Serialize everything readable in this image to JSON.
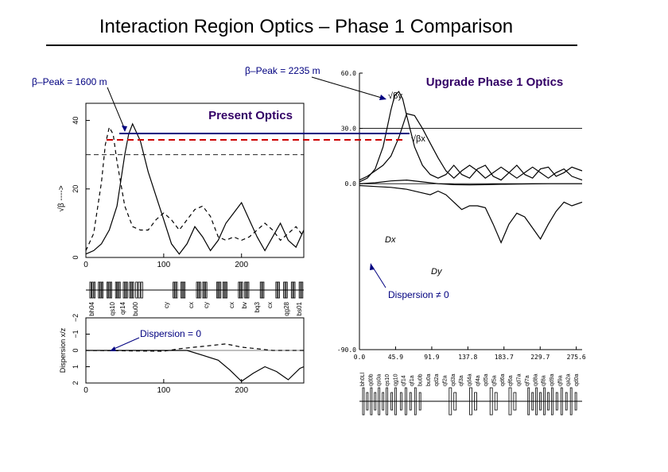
{
  "slide": {
    "title": "Interaction Region Optics – Phase 1 Comparison"
  },
  "annotations": {
    "beta_peak_present": "β–Peak = 1600 m",
    "beta_peak_upgrade": "β–Peak = 2235 m",
    "dispersion_zero": "Dispersion = 0",
    "dispersion_nonzero": "Dispersion ≠ 0"
  },
  "colors": {
    "label_purple": "#330066",
    "annot_blue": "#000080",
    "peak_line_blue": "#000080",
    "peak_line_red": "#cc0000"
  },
  "chart_data": [
    {
      "id": "present_beta",
      "type": "line",
      "title": "Present Optics",
      "ylabel": "√β ---->",
      "xlim": [
        0,
        280
      ],
      "ylim": [
        0,
        45
      ],
      "xticks": [
        0,
        100,
        200
      ],
      "xtick_labels": [
        "0",
        "100",
        "200"
      ],
      "yticks": [
        0,
        20,
        40
      ],
      "ytick_labels": [
        "0",
        "20",
        "40"
      ],
      "reference_level": 30,
      "series": [
        {
          "name": "sqrt-beta-x",
          "style": "solid",
          "x": [
            0,
            10,
            20,
            30,
            40,
            50,
            55,
            60,
            70,
            80,
            90,
            100,
            110,
            120,
            130,
            140,
            150,
            160,
            170,
            180,
            190,
            200,
            210,
            220,
            230,
            240,
            250,
            260,
            270,
            280
          ],
          "y": [
            1,
            2,
            4,
            8,
            15,
            30,
            36,
            39,
            34,
            25,
            18,
            11,
            4,
            1,
            4,
            9,
            6,
            2,
            5,
            10,
            13,
            16,
            11,
            6,
            2,
            6,
            10,
            5,
            3,
            8
          ]
        },
        {
          "name": "sqrt-beta-y",
          "style": "dashed",
          "x": [
            0,
            10,
            20,
            25,
            30,
            35,
            40,
            50,
            60,
            70,
            80,
            90,
            100,
            110,
            120,
            130,
            140,
            150,
            160,
            170,
            180,
            190,
            200,
            210,
            220,
            230,
            240,
            250,
            260,
            270,
            280
          ],
          "y": [
            2,
            7,
            22,
            33,
            38,
            36,
            28,
            15,
            9,
            8,
            8,
            11,
            13,
            11,
            8,
            11,
            14,
            15,
            12,
            6,
            5,
            6,
            5,
            6,
            8,
            10,
            8,
            5,
            7,
            9,
            6
          ]
        }
      ]
    },
    {
      "id": "present_lattice",
      "type": "lattice",
      "element_labels": [
        "bh04",
        "qs10",
        "qr14",
        "bu00",
        "cy",
        "cx",
        "cy",
        "cx",
        "bv",
        "bq3",
        "cx",
        "qg28",
        "bs01"
      ]
    },
    {
      "id": "present_dispersion",
      "type": "line",
      "ylabel": "Dispersion x/z",
      "xlim": [
        0,
        280
      ],
      "ylim": [
        2,
        -2
      ],
      "xticks": [
        0,
        100,
        200
      ],
      "xtick_labels": [
        "0",
        "100",
        "200"
      ],
      "yticks": [
        2,
        1,
        0,
        -1,
        -2
      ],
      "ytick_labels": [
        "2",
        "1",
        "0",
        "−1",
        "−2"
      ],
      "series": [
        {
          "name": "dispersion-x",
          "style": "solid",
          "x": [
            0,
            100,
            130,
            150,
            170,
            185,
            200,
            215,
            230,
            245,
            260,
            275,
            280
          ],
          "y": [
            0,
            0,
            0,
            0.3,
            0.6,
            1.2,
            1.9,
            1.4,
            1.0,
            1.3,
            1.8,
            1.1,
            1.0
          ]
        },
        {
          "name": "dispersion-y",
          "style": "dashed",
          "x": [
            0,
            100,
            120,
            140,
            160,
            180,
            200,
            220,
            240,
            260,
            280
          ],
          "y": [
            0,
            0.05,
            -0.1,
            -0.2,
            -0.3,
            -0.4,
            -0.2,
            -0.1,
            0,
            0,
            0
          ]
        }
      ]
    },
    {
      "id": "upgrade_beta",
      "type": "line",
      "title": "Upgrade Phase 1 Optics",
      "xlim": [
        0,
        283
      ],
      "ylim": [
        -90,
        60
      ],
      "xticks": [
        0,
        45.9,
        91.9,
        137.8,
        183.7,
        229.7,
        275.6
      ],
      "xtick_labels": [
        "0.0",
        "45.9",
        "91.9",
        "137.8",
        "183.7",
        "229.7",
        "275.6"
      ],
      "yticks": [
        60,
        30,
        0,
        -90
      ],
      "ytick_labels": [
        "60.0",
        "30.0",
        "0.0",
        "-90.0"
      ],
      "curve_labels": {
        "sqrt_beta_y": "√βy",
        "sqrt_beta_x": "√βx",
        "dispersion_x": "Dx",
        "dispersion_y": "Dy"
      },
      "series": [
        {
          "name": "sqrt-beta-y",
          "style": "solid",
          "x": [
            0,
            10,
            20,
            30,
            40,
            45,
            50,
            55,
            60,
            70,
            80,
            90,
            100,
            110,
            120,
            130,
            140,
            150,
            160,
            170,
            180,
            190,
            200,
            210,
            220,
            230,
            240,
            250,
            260,
            270,
            283
          ],
          "y": [
            1,
            3,
            8,
            20,
            40,
            48,
            50,
            46,
            37,
            20,
            10,
            5,
            3,
            5,
            10,
            5,
            3,
            8,
            10,
            4,
            2,
            6,
            10,
            5,
            3,
            8,
            9,
            4,
            6,
            9,
            7
          ]
        },
        {
          "name": "sqrt-beta-x",
          "style": "solid",
          "x": [
            0,
            10,
            20,
            30,
            40,
            50,
            60,
            70,
            80,
            90,
            100,
            110,
            120,
            130,
            140,
            150,
            160,
            170,
            180,
            190,
            200,
            210,
            220,
            230,
            240,
            250,
            260,
            270,
            283
          ],
          "y": [
            2,
            4,
            7,
            10,
            15,
            25,
            38,
            37,
            30,
            22,
            14,
            7,
            3,
            7,
            10,
            7,
            3,
            6,
            9,
            6,
            3,
            6,
            9,
            6,
            3,
            6,
            8,
            4,
            2
          ]
        },
        {
          "name": "dispersion-x",
          "style": "solid",
          "x": [
            0,
            20,
            40,
            60,
            80,
            100,
            120,
            140,
            160,
            180,
            200,
            220,
            240,
            260,
            283
          ],
          "y": [
            0,
            0.5,
            1.5,
            2,
            1,
            0,
            -0.5,
            -0.6,
            -0.5,
            -0.3,
            -0.2,
            -0.1,
            0,
            0,
            0
          ]
        },
        {
          "name": "dispersion-y",
          "style": "solid",
          "x": [
            0,
            20,
            40,
            60,
            80,
            90,
            100,
            110,
            120,
            130,
            140,
            150,
            160,
            170,
            180,
            190,
            200,
            210,
            220,
            230,
            240,
            250,
            260,
            270,
            283
          ],
          "y": [
            -1,
            -1.5,
            -2,
            -3,
            -5,
            -6,
            -4,
            -6,
            -10,
            -14,
            -12,
            -12,
            -13,
            -22,
            -32,
            -22,
            -16,
            -18,
            -24,
            -30,
            -22,
            -15,
            -10,
            -12,
            -10
          ]
        }
      ]
    },
    {
      "id": "upgrade_lattice",
      "type": "lattice",
      "element_labels": [
        "bh0Ll",
        "qd0b",
        "qs0a",
        "qs10",
        "qg10",
        "qf14",
        "qf1a",
        "bu0b",
        "bu0a",
        "qd2a",
        "qf2a",
        "qd3a",
        "qf3a",
        "qd4a",
        "qf4a",
        "qd5a",
        "qf5a",
        "qd6a",
        "qf6a",
        "qd7a",
        "qf7a",
        "qd8a",
        "qf8a",
        "qd9a",
        "qf9a",
        "qa2a",
        "qd0a"
      ]
    }
  ]
}
